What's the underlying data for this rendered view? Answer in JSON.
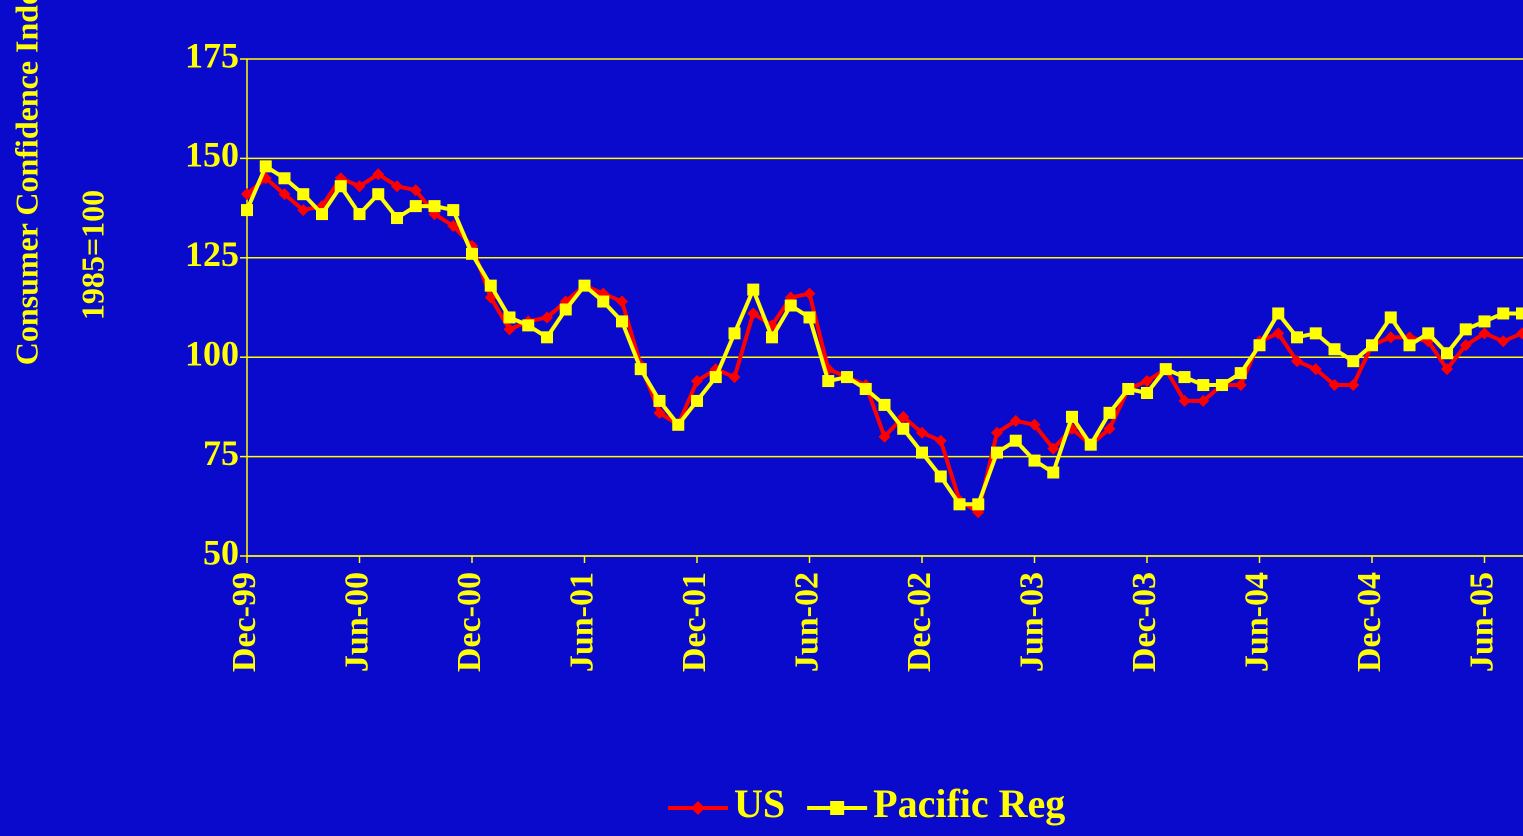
{
  "chart_data": {
    "type": "line",
    "ylabel": "Consumer Confidence Index",
    "ylabel_sub": "1985=100",
    "categories": [
      "Dec-99",
      null,
      null,
      null,
      null,
      null,
      "Jun-00",
      null,
      null,
      null,
      null,
      null,
      "Dec-00",
      null,
      null,
      null,
      null,
      null,
      "Jun-01",
      null,
      null,
      null,
      null,
      null,
      "Dec-01",
      null,
      null,
      null,
      null,
      null,
      "Jun-02",
      null,
      null,
      null,
      null,
      null,
      "Dec-02",
      null,
      null,
      null,
      null,
      null,
      "Jun-03",
      null,
      null,
      null,
      null,
      null,
      "Dec-03",
      null,
      null,
      null,
      null,
      null,
      "Jun-04",
      null,
      null,
      null,
      null,
      null,
      "Dec-04",
      null,
      null,
      null,
      null,
      null,
      "Jun-05",
      null,
      null
    ],
    "series": [
      {
        "name": "US",
        "color": "#ff0000",
        "marker": "diamond",
        "values": [
          141,
          145,
          141,
          137,
          138,
          145,
          143,
          146,
          143,
          142,
          136,
          133,
          128,
          115,
          107,
          109,
          110,
          114,
          118,
          116,
          114,
          98,
          86,
          83,
          94,
          97,
          95,
          111,
          108,
          115,
          116,
          97,
          95,
          93,
          80,
          85,
          81,
          79,
          64,
          61,
          81,
          84,
          83,
          77,
          82,
          78,
          82,
          92,
          94,
          97,
          89,
          89,
          93,
          93,
          104,
          106,
          99,
          97,
          93,
          93,
          103,
          105,
          105,
          104,
          97,
          103,
          106,
          104,
          106
        ]
      },
      {
        "name": "Pacific Reg",
        "color": "#ffff00",
        "marker": "square",
        "values": [
          137,
          148,
          145,
          141,
          136,
          143,
          136,
          141,
          135,
          138,
          138,
          137,
          126,
          118,
          110,
          108,
          105,
          112,
          118,
          114,
          109,
          97,
          89,
          83,
          89,
          95,
          106,
          117,
          105,
          113,
          110,
          94,
          95,
          92,
          88,
          82,
          76,
          70,
          63,
          63,
          76,
          79,
          74,
          71,
          85,
          78,
          86,
          92,
          91,
          97,
          95,
          93,
          93,
          96,
          103,
          111,
          105,
          106,
          102,
          99,
          103,
          110,
          103,
          106,
          101,
          107,
          109,
          111,
          111
        ]
      }
    ],
    "ylim": [
      50,
      175
    ],
    "yticks": [
      50,
      75,
      100,
      125,
      150,
      175
    ],
    "grid": true,
    "legend": "bottom"
  }
}
